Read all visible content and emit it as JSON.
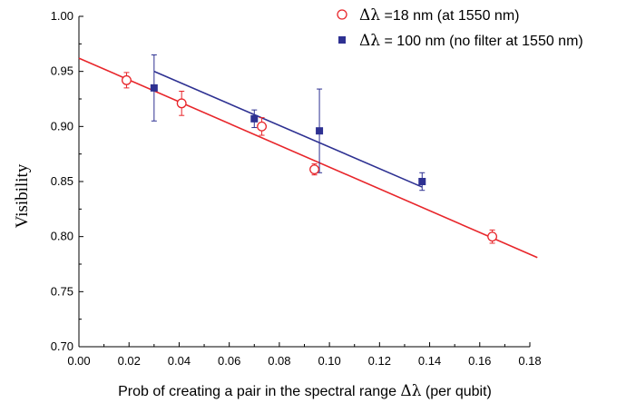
{
  "chart_data": {
    "type": "scatter",
    "xlabel_prefix": "Prob of creating a pair in the spectral range ",
    "xlabel_symbol": "Δλ",
    "xlabel_suffix": " (per qubit)",
    "ylabel": "Visibility",
    "xlim": [
      0.0,
      0.18
    ],
    "ylim": [
      0.7,
      1.0
    ],
    "xticks": [
      "0.00",
      "0.02",
      "0.04",
      "0.06",
      "0.08",
      "0.10",
      "0.12",
      "0.14",
      "0.16",
      "0.18"
    ],
    "yticks": [
      "0.70",
      "0.75",
      "0.80",
      "0.85",
      "0.90",
      "0.95",
      "1.00"
    ],
    "legend_position": "top-right",
    "series": [
      {
        "name_symbol": "Δλ",
        "name_text": " =18 nm (at 1550 nm)",
        "marker": "open-circle",
        "color": "#e8262b",
        "points": [
          {
            "x": 0.019,
            "y": 0.942,
            "err": 0.007
          },
          {
            "x": 0.041,
            "y": 0.921,
            "err": 0.011
          },
          {
            "x": 0.073,
            "y": 0.9,
            "err": 0.008
          },
          {
            "x": 0.094,
            "y": 0.861,
            "err": 0.005
          },
          {
            "x": 0.165,
            "y": 0.8,
            "err": 0.006
          }
        ],
        "fit": {
          "x0": 0.0,
          "y0": 0.962,
          "x1": 0.183,
          "y1": 0.781
        }
      },
      {
        "name_symbol": "Δλ",
        "name_text": " = 100 nm (no filter at 1550 nm)",
        "marker": "filled-square",
        "color": "#2e3192",
        "points": [
          {
            "x": 0.03,
            "y": 0.935,
            "err": 0.03
          },
          {
            "x": 0.07,
            "y": 0.907,
            "err": 0.008
          },
          {
            "x": 0.096,
            "y": 0.896,
            "err": 0.038
          },
          {
            "x": 0.137,
            "y": 0.85,
            "err": 0.008
          }
        ],
        "fit": {
          "x0": 0.03,
          "y0": 0.95,
          "x1": 0.137,
          "y1": 0.845
        }
      }
    ]
  }
}
